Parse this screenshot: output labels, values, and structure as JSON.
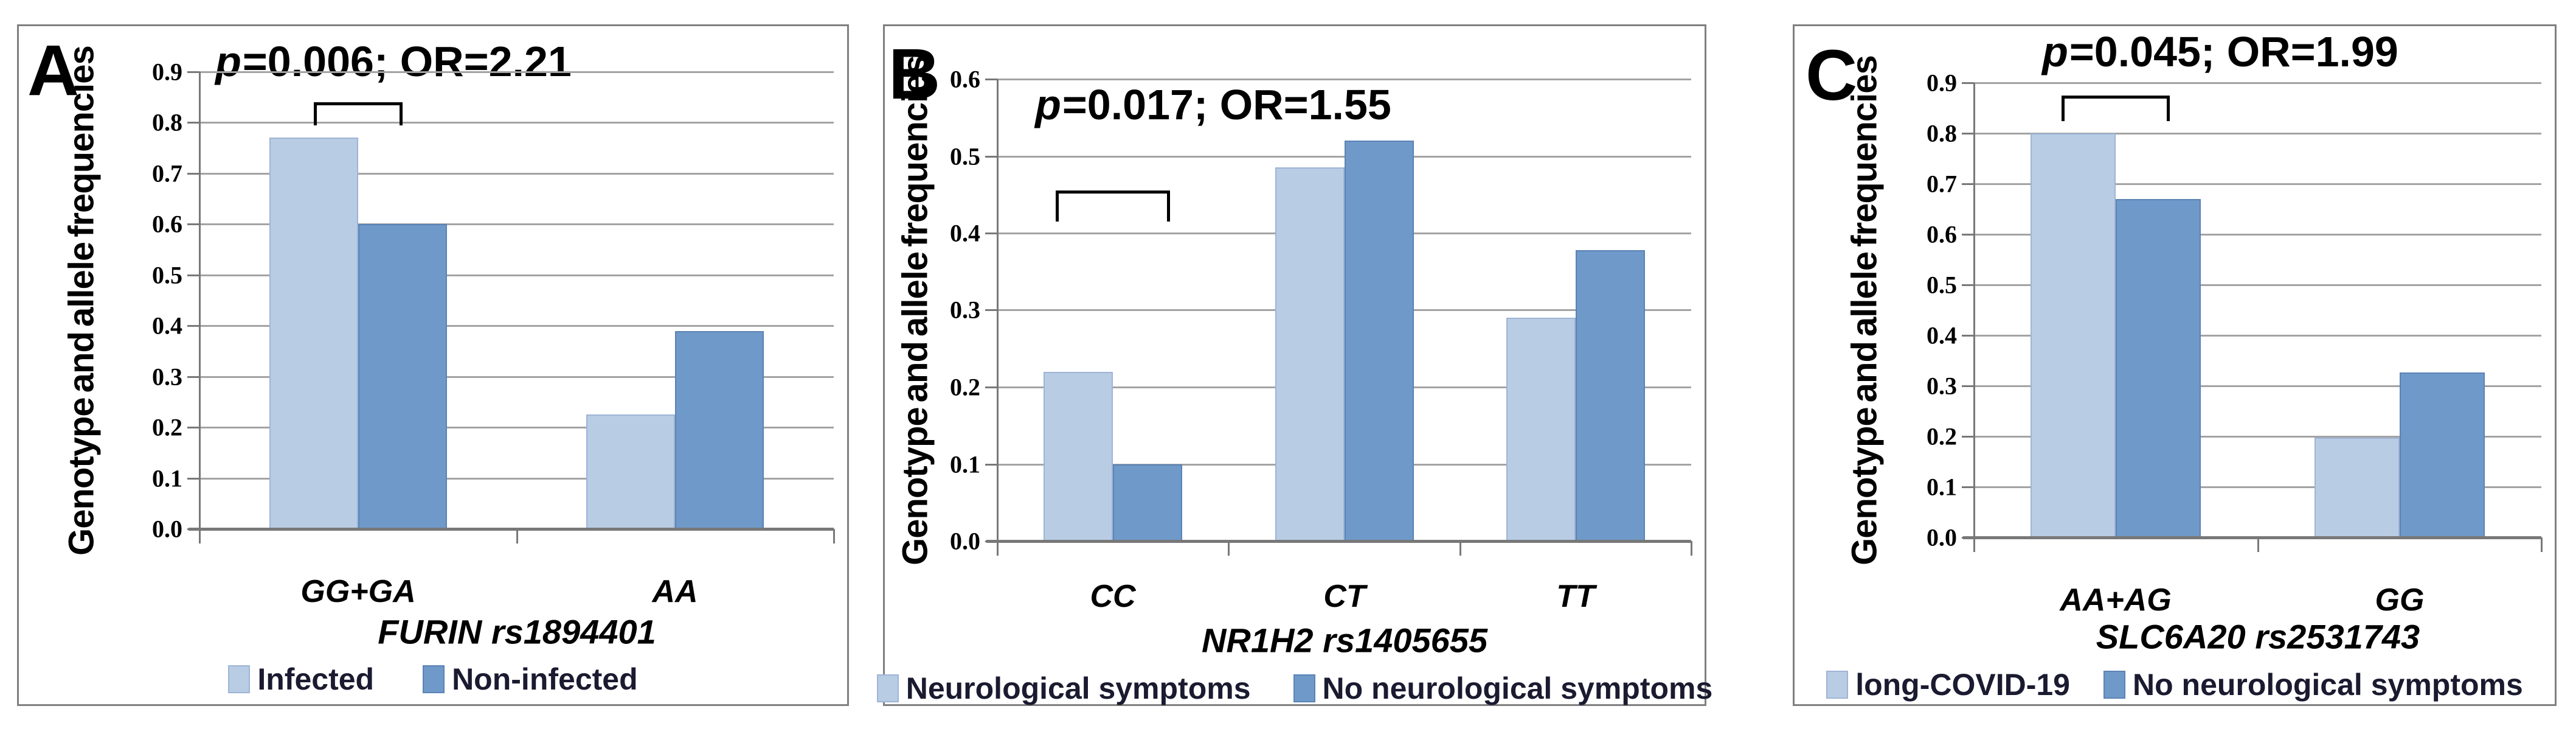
{
  "figure": {
    "description_visible_text_only": true,
    "y_axis_title": "Genotype and allele frequencies",
    "colors": {
      "series_light": "#b8cce4",
      "series_dark": "#6f99c8",
      "series_light_edge": "#9fb4d6",
      "series_dark_edge": "#5b83b5",
      "gridline": "#a3a3a3",
      "axis": "#787878",
      "panel_border": "#7f7f7f",
      "legend_text": "#1a1a30",
      "bracket": "#000000"
    }
  },
  "chart_data": [
    {
      "type": "bar",
      "panel_label": "A",
      "title": "p=0.006; OR=2.21",
      "title_parts": {
        "p": "p",
        "rest": "=0.006; OR=2.21"
      },
      "ylabel": "Genotype and allele frequencies",
      "xlabel": "FURIN rs1894401",
      "categories": [
        "GG+GA",
        "AA"
      ],
      "series": [
        {
          "name": "Infected",
          "color": "#b8cce4",
          "edge": "#9fb4d6",
          "values": [
            0.77,
            0.225
          ]
        },
        {
          "name": "Non-infected",
          "color": "#6f99c8",
          "edge": "#5b83b5",
          "values": [
            0.6,
            0.39
          ]
        }
      ],
      "ylim": [
        0,
        0.9
      ],
      "ytick_step": 0.1,
      "grid": true,
      "legend_position": "bottom",
      "significance_bracket": {
        "group_index": 0,
        "top_value": 0.84,
        "tail_value": 0.795
      }
    },
    {
      "type": "bar",
      "panel_label": "B",
      "title": "p=0.017; OR=1.55",
      "title_parts": {
        "p": "p",
        "rest": "=0.017; OR=1.55"
      },
      "ylabel": "Genotype and allele frequencies",
      "xlabel": "NR1H2 rs1405655",
      "categories": [
        "CC",
        "CT",
        "TT"
      ],
      "series": [
        {
          "name": "Neurological symptoms",
          "color": "#b8cce4",
          "edge": "#9fb4d6",
          "values": [
            0.22,
            0.485,
            0.29
          ]
        },
        {
          "name": "No neurological symptoms",
          "color": "#6f99c8",
          "edge": "#5b83b5",
          "values": [
            0.1,
            0.52,
            0.378
          ]
        }
      ],
      "ylim": [
        0,
        0.6
      ],
      "ytick_step": 0.1,
      "grid": true,
      "legend_position": "bottom",
      "significance_bracket": {
        "group_index": 0,
        "top_value": 0.455,
        "tail_value": 0.415
      }
    },
    {
      "type": "bar",
      "panel_label": "C",
      "title": "p=0.045; OR=1.99",
      "title_parts": {
        "p": "p",
        "rest": "=0.045; OR=1.99"
      },
      "ylabel": "Genotype and allele frequencies",
      "xlabel": "SLC6A20 rs2531743",
      "categories": [
        "AA+AG",
        "GG"
      ],
      "series": [
        {
          "name": "long-COVID-19",
          "color": "#b8cce4",
          "edge": "#9fb4d6",
          "values": [
            0.8,
            0.197
          ]
        },
        {
          "name": "No neurological symptoms",
          "color": "#6f99c8",
          "edge": "#5b83b5",
          "values": [
            0.67,
            0.327
          ]
        }
      ],
      "ylim": [
        0,
        0.9
      ],
      "ytick_step": 0.1,
      "grid": true,
      "legend_position": "bottom",
      "significance_bracket": {
        "group_index": 0,
        "top_value": 0.875,
        "tail_value": 0.825
      }
    }
  ]
}
